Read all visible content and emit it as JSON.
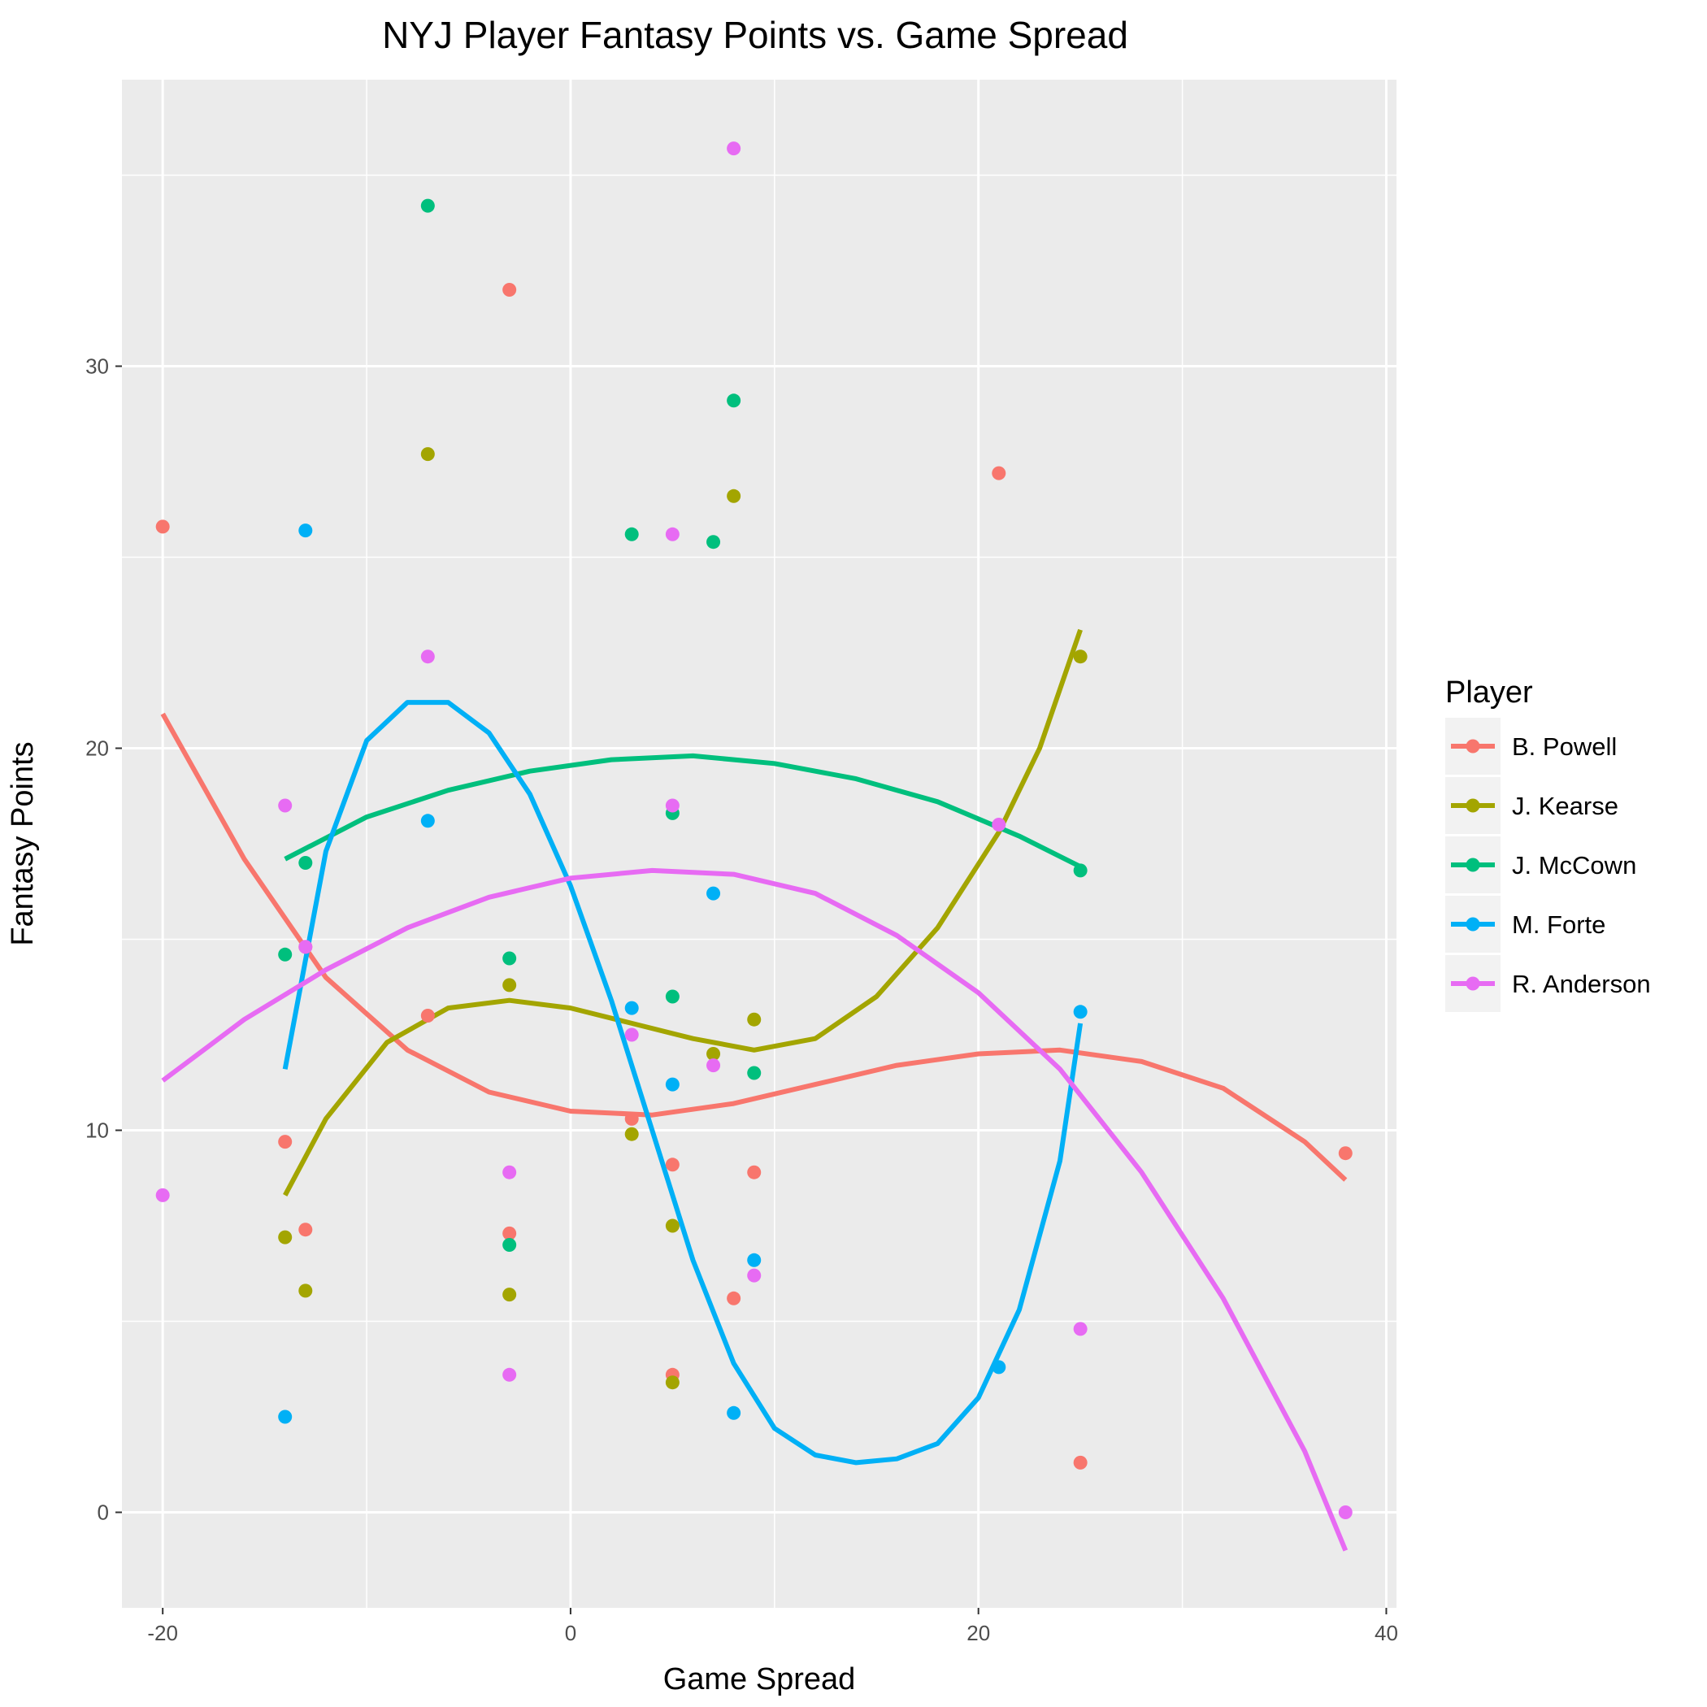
{
  "chart_data": {
    "type": "scatter",
    "title": "NYJ Player Fantasy Points vs. Game Spread",
    "xlabel": "Game Spread",
    "ylabel": "Fantasy Points",
    "xlim": [
      -22,
      40.5
    ],
    "ylim": [
      -2.5,
      37.5
    ],
    "xticks": [
      -20,
      0,
      20,
      40
    ],
    "yticks": [
      0,
      10,
      20,
      30
    ],
    "grid": true,
    "legend": {
      "title": "Player",
      "position": "right"
    },
    "series": [
      {
        "name": "B. Powell",
        "color": "#F8766D",
        "points": [
          [
            -20,
            25.8
          ],
          [
            -14,
            9.7
          ],
          [
            -13,
            7.4
          ],
          [
            -13,
            14.8
          ],
          [
            -7,
            13.0
          ],
          [
            -3,
            32.0
          ],
          [
            -3,
            7.3
          ],
          [
            3,
            10.3
          ],
          [
            5,
            9.1
          ],
          [
            5,
            3.6
          ],
          [
            8,
            5.6
          ],
          [
            9,
            8.9
          ],
          [
            21,
            27.2
          ],
          [
            25,
            1.3
          ],
          [
            38,
            9.4
          ]
        ],
        "trend": [
          [
            -20,
            20.9
          ],
          [
            -16,
            17.1
          ],
          [
            -12,
            14.0
          ],
          [
            -8,
            12.1
          ],
          [
            -4,
            11.0
          ],
          [
            0,
            10.5
          ],
          [
            4,
            10.4
          ],
          [
            8,
            10.7
          ],
          [
            12,
            11.2
          ],
          [
            16,
            11.7
          ],
          [
            20,
            12.0
          ],
          [
            24,
            12.1
          ],
          [
            28,
            11.8
          ],
          [
            32,
            11.1
          ],
          [
            36,
            9.7
          ],
          [
            38,
            8.7
          ]
        ]
      },
      {
        "name": "J. Kearse",
        "color": "#A3A500",
        "points": [
          [
            -14,
            7.2
          ],
          [
            -13,
            5.8
          ],
          [
            -7,
            27.7
          ],
          [
            -3,
            13.8
          ],
          [
            -3,
            5.7
          ],
          [
            3,
            9.9
          ],
          [
            5,
            7.5
          ],
          [
            5,
            3.4
          ],
          [
            7,
            12.0
          ],
          [
            8,
            26.6
          ],
          [
            9,
            12.9
          ],
          [
            25,
            22.4
          ]
        ],
        "trend": [
          [
            -14,
            8.3
          ],
          [
            -12,
            10.3
          ],
          [
            -9,
            12.3
          ],
          [
            -6,
            13.2
          ],
          [
            -3,
            13.4
          ],
          [
            0,
            13.2
          ],
          [
            3,
            12.8
          ],
          [
            6,
            12.4
          ],
          [
            9,
            12.1
          ],
          [
            12,
            12.4
          ],
          [
            15,
            13.5
          ],
          [
            18,
            15.3
          ],
          [
            21,
            17.8
          ],
          [
            23,
            20.0
          ],
          [
            25,
            23.1
          ]
        ]
      },
      {
        "name": "J. McCown",
        "color": "#00BF7D",
        "points": [
          [
            -14,
            14.6
          ],
          [
            -13,
            17.0
          ],
          [
            -7,
            34.2
          ],
          [
            -3,
            14.5
          ],
          [
            -3,
            7.0
          ],
          [
            3,
            25.6
          ],
          [
            5,
            18.3
          ],
          [
            5,
            13.5
          ],
          [
            7,
            25.4
          ],
          [
            8,
            29.1
          ],
          [
            9,
            11.5
          ],
          [
            25,
            16.8
          ]
        ],
        "trend": [
          [
            -14,
            17.1
          ],
          [
            -10,
            18.2
          ],
          [
            -6,
            18.9
          ],
          [
            -2,
            19.4
          ],
          [
            2,
            19.7
          ],
          [
            6,
            19.8
          ],
          [
            10,
            19.6
          ],
          [
            14,
            19.2
          ],
          [
            18,
            18.6
          ],
          [
            22,
            17.7
          ],
          [
            25,
            16.9
          ]
        ]
      },
      {
        "name": "M. Forte",
        "color": "#00B0F6",
        "points": [
          [
            -14,
            2.5
          ],
          [
            -13,
            25.7
          ],
          [
            -7,
            18.1
          ],
          [
            3,
            13.2
          ],
          [
            5,
            11.2
          ],
          [
            7,
            16.2
          ],
          [
            8,
            2.6
          ],
          [
            9,
            6.6
          ],
          [
            21,
            3.8
          ],
          [
            25,
            13.1
          ]
        ],
        "trend": [
          [
            -14,
            11.6
          ],
          [
            -12,
            17.3
          ],
          [
            -10,
            20.2
          ],
          [
            -8,
            21.2
          ],
          [
            -6,
            21.2
          ],
          [
            -4,
            20.4
          ],
          [
            -2,
            18.8
          ],
          [
            0,
            16.4
          ],
          [
            2,
            13.4
          ],
          [
            4,
            10.0
          ],
          [
            6,
            6.6
          ],
          [
            8,
            3.9
          ],
          [
            10,
            2.2
          ],
          [
            12,
            1.5
          ],
          [
            14,
            1.3
          ],
          [
            16,
            1.4
          ],
          [
            18,
            1.8
          ],
          [
            20,
            3.0
          ],
          [
            22,
            5.3
          ],
          [
            24,
            9.2
          ],
          [
            25,
            12.8
          ]
        ]
      },
      {
        "name": "R. Anderson",
        "color": "#E76BF3",
        "points": [
          [
            -20,
            8.3
          ],
          [
            -14,
            18.5
          ],
          [
            -13,
            14.8
          ],
          [
            -7,
            22.4
          ],
          [
            -3,
            8.9
          ],
          [
            -3,
            3.6
          ],
          [
            3,
            12.5
          ],
          [
            5,
            25.6
          ],
          [
            5,
            18.5
          ],
          [
            7,
            11.7
          ],
          [
            8,
            35.7
          ],
          [
            9,
            6.2
          ],
          [
            21,
            18.0
          ],
          [
            25,
            4.8
          ],
          [
            38,
            0.0
          ]
        ],
        "trend": [
          [
            -20,
            11.3
          ],
          [
            -16,
            12.9
          ],
          [
            -12,
            14.2
          ],
          [
            -8,
            15.3
          ],
          [
            -4,
            16.1
          ],
          [
            0,
            16.6
          ],
          [
            4,
            16.8
          ],
          [
            8,
            16.7
          ],
          [
            12,
            16.2
          ],
          [
            16,
            15.1
          ],
          [
            20,
            13.6
          ],
          [
            24,
            11.6
          ],
          [
            28,
            8.9
          ],
          [
            32,
            5.6
          ],
          [
            36,
            1.6
          ],
          [
            38,
            -1.0
          ]
        ]
      }
    ]
  }
}
